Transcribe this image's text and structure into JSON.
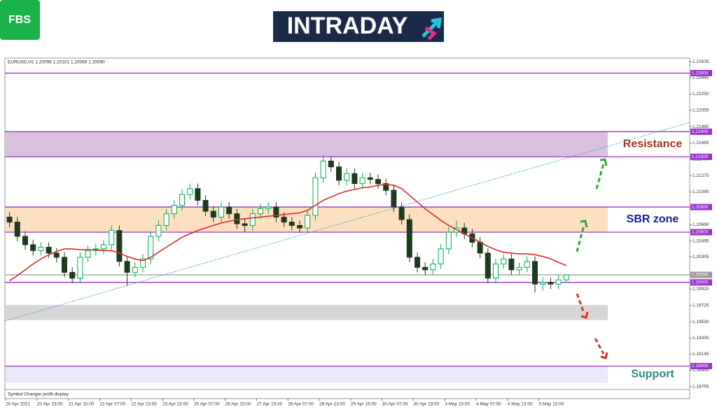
{
  "logo": "FBS",
  "banner": "INTRADAY",
  "chart_data": {
    "type": "candlestick",
    "header": "EURUSD,H1  1.20096 1.20101 1.20069 1.20090",
    "footer": "Symbol Changer profit display",
    "xlabels": [
      "20 Apr 2021",
      "20 Apr 23:00",
      "21 Apr 15:00",
      "22 Apr 07:00",
      "22 Apr 23:00",
      "23 Apr 15:00",
      "26 Apr 07:00",
      "26 Apr 23:00",
      "27 Apr 15:00",
      "28 Apr 07:00",
      "28 Apr 23:00",
      "29 Apr 15:00",
      "30 Apr 07:00",
      "30 Apr 23:00",
      "3 May 15:00",
      "4 May 07:00",
      "4 May 23:00",
      "5 May 15:00"
    ],
    "ylim": [
      1.1872,
      1.2268
    ],
    "yticks": [
      1.22635,
      1.22445,
      {
        "value": 1.2225,
        "label": "1.22250"
      },
      1.22055,
      {
        "value": 1.2186,
        "label": "1.21860"
      },
      1.21665,
      {
        "value": 1.2147,
        "label": "1.21470"
      },
      1.21275,
      {
        "value": 1.2108,
        "label": "1.21080"
      },
      {
        "value": 1.2069,
        "label": "1.20690"
      },
      1.20495,
      1.20305,
      {
        "value": 1.1992,
        "label": "1.19920"
      },
      1.19725,
      {
        "value": 1.1953,
        "label": "1.19530"
      },
      1.19335,
      1.19145,
      {
        "value": 1.1895,
        "label": "1.18950"
      },
      1.18755
    ],
    "up_color": "#00b050",
    "down_color": "#1f3b1f",
    "open": [
      1.2078,
      1.2072,
      1.2055,
      1.2045,
      1.2038,
      1.2042,
      1.2035,
      1.203,
      1.2012,
      1.2005,
      1.203,
      1.2038,
      1.204,
      1.2045,
      1.2062,
      1.2025,
      1.2012,
      1.2018,
      1.2028,
      1.2055,
      1.2068,
      1.2082,
      1.2092,
      1.2105,
      1.2112,
      1.2098,
      1.2085,
      1.2078,
      1.209,
      1.2082,
      1.207,
      1.2068,
      1.2082,
      1.2088,
      1.209,
      1.2078,
      1.2072,
      1.2068,
      1.2065,
      1.208,
      1.2125,
      1.2145,
      1.2138,
      1.2122,
      1.213,
      1.2118,
      1.2125,
      1.2123,
      1.2118,
      1.211,
      1.209,
      1.2075,
      1.203,
      1.2018,
      1.2015,
      1.2022,
      1.204,
      1.206,
      1.2065,
      1.2058,
      1.2048,
      1.2035,
      1.2005,
      1.2022,
      1.2028,
      1.2015,
      1.2018,
      1.2025,
      1.1998,
      1.2,
      1.1998,
      1.2003
    ],
    "high": [
      1.2084,
      1.2078,
      1.2061,
      1.2051,
      1.2048,
      1.2048,
      1.2041,
      1.2036,
      1.2018,
      1.2036,
      1.2044,
      1.2046,
      1.2051,
      1.2068,
      1.2068,
      1.2031,
      1.2024,
      1.2034,
      1.2061,
      1.2074,
      1.2088,
      1.2098,
      1.2111,
      1.2118,
      1.2118,
      1.2104,
      1.2091,
      1.2096,
      1.2096,
      1.2088,
      1.2076,
      1.2088,
      1.2094,
      1.2096,
      1.2096,
      1.2084,
      1.2078,
      1.2074,
      1.2086,
      1.2131,
      1.2152,
      1.2151,
      1.2144,
      1.2136,
      1.2136,
      1.2131,
      1.2131,
      1.2129,
      1.2124,
      1.2116,
      1.2096,
      1.2081,
      1.2036,
      1.2024,
      1.2028,
      1.2046,
      1.2066,
      1.2074,
      1.2071,
      1.2064,
      1.2054,
      1.2041,
      1.2028,
      1.2034,
      1.2034,
      1.2024,
      1.2031,
      1.2031,
      1.2006,
      1.2006,
      1.2009,
      1.201
    ],
    "low": [
      1.2066,
      1.2049,
      1.2039,
      1.2032,
      1.2032,
      1.2029,
      1.2024,
      1.2006,
      1.1999,
      1.1999,
      1.2024,
      1.2032,
      1.2034,
      1.2039,
      1.2019,
      1.1996,
      1.2006,
      1.2012,
      1.2022,
      1.2049,
      1.2062,
      1.2076,
      1.2086,
      1.2099,
      1.2092,
      1.2079,
      1.2072,
      1.2072,
      1.2076,
      1.2064,
      1.206,
      1.2062,
      1.2076,
      1.2082,
      1.2072,
      1.2066,
      1.2062,
      1.2059,
      1.2059,
      1.2074,
      1.2119,
      1.2132,
      1.2116,
      1.2116,
      1.2112,
      1.2112,
      1.2117,
      1.2112,
      1.2104,
      1.2084,
      1.2069,
      1.2024,
      1.2012,
      1.2009,
      1.2009,
      1.2016,
      1.2034,
      1.2054,
      1.2052,
      1.2042,
      1.2029,
      1.1999,
      1.1999,
      1.2016,
      1.2009,
      1.2009,
      1.2012,
      1.1988,
      1.199,
      1.1992,
      1.1992,
      1.2001
    ],
    "close": [
      1.2072,
      1.2055,
      1.2045,
      1.2038,
      1.2042,
      1.2035,
      1.203,
      1.2012,
      1.2005,
      1.203,
      1.2038,
      1.204,
      1.2045,
      1.2062,
      1.2025,
      1.2012,
      1.2018,
      1.2028,
      1.2055,
      1.2068,
      1.2082,
      1.2092,
      1.2105,
      1.2112,
      1.2098,
      1.2085,
      1.2078,
      1.209,
      1.2082,
      1.207,
      1.2068,
      1.2082,
      1.2088,
      1.209,
      1.2078,
      1.2072,
      1.2068,
      1.2065,
      1.208,
      1.2125,
      1.2145,
      1.2138,
      1.2122,
      1.213,
      1.2118,
      1.2125,
      1.2123,
      1.2118,
      1.211,
      1.209,
      1.2075,
      1.203,
      1.2018,
      1.2015,
      1.2022,
      1.204,
      1.206,
      1.2065,
      1.2058,
      1.2048,
      1.2035,
      1.2005,
      1.2022,
      1.2028,
      1.2015,
      1.2018,
      1.2025,
      1.1998,
      1.2,
      1.1998,
      1.2003,
      1.2009
    ],
    "ma": {
      "color": "#e02a2a",
      "values": [
        1.2002,
        1.2008,
        1.2015,
        1.2022,
        1.2028,
        1.2033,
        1.2037,
        1.204,
        1.204,
        1.2039,
        1.2039,
        1.2039,
        1.2038,
        1.2038,
        1.2035,
        1.2031,
        1.2028,
        1.2026,
        1.203,
        1.2036,
        1.2042,
        1.2048,
        1.2054,
        1.2058,
        1.2062,
        1.2065,
        1.2068,
        1.2071,
        1.2073,
        1.2075,
        1.2076,
        1.2077,
        1.2078,
        1.2079,
        1.208,
        1.2081,
        1.2082,
        1.2083,
        1.2086,
        1.2092,
        1.2098,
        1.2102,
        1.2106,
        1.2109,
        1.2111,
        1.2113,
        1.2114,
        1.2116,
        1.2117,
        1.2116,
        1.2112,
        1.2104,
        1.2096,
        1.2088,
        1.2081,
        1.2074,
        1.2068,
        1.2063,
        1.2058,
        1.2053,
        1.2048,
        1.2043,
        1.2039,
        1.2036,
        1.2035,
        1.2034,
        1.2034,
        1.2033,
        1.2031,
        1.2028,
        1.2024,
        1.202
      ]
    },
    "trendline": {
      "from": 1.1954,
      "to": 1.2191,
      "color": "#3a9ad9"
    },
    "zones": [
      {
        "name": "Resistance",
        "from": 1.215,
        "to": 1.218,
        "color": "#d9c1dd",
        "text_color": "#a0341c"
      },
      {
        "name": "SBR zone",
        "from": 1.206,
        "to": 1.209,
        "color": "#fde0bf",
        "text_color": "#1a1a9c"
      },
      {
        "from": 1.1955,
        "to": 1.1973,
        "color": "#d6d6d6"
      },
      {
        "name": "Support",
        "from": 1.188,
        "to": 1.19,
        "color": "#e8e8f8",
        "text_color": "#2f8a86"
      }
    ],
    "levels": [
      {
        "value": 1.225,
        "label": "1.22500",
        "color": "#9933cc"
      },
      {
        "value": 1.218,
        "label": "1.21800",
        "color": "#9933cc"
      },
      {
        "value": 1.215,
        "label": "1.21500",
        "color": "#9933cc"
      },
      {
        "value": 1.209,
        "label": "1.20900",
        "color": "#9933cc"
      },
      {
        "value": 1.206,
        "label": "1.20600",
        "color": "#9933cc"
      },
      {
        "value": 1.2009,
        "label": "1.20090",
        "color": "#9a9a9a"
      },
      {
        "value": 1.2,
        "label": "1.20000",
        "color": "#9933cc"
      },
      {
        "value": 1.19,
        "label": "1.19000",
        "color": "#9933cc"
      }
    ]
  }
}
